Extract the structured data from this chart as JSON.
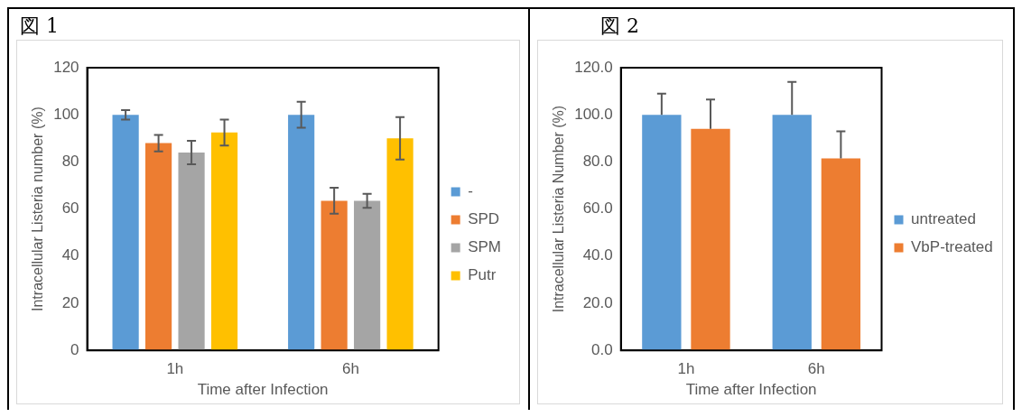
{
  "chart_data": [
    {
      "type": "bar",
      "title": "図 1",
      "xlabel": "Time after Infection",
      "ylabel": "Intracellular Listeria number (%)",
      "categories": [
        "1h",
        "6h"
      ],
      "ylim": [
        0,
        120
      ],
      "yticks": [
        0,
        20,
        40,
        60,
        80,
        100,
        120
      ],
      "legend": "right",
      "series": [
        {
          "name": "-",
          "color": "#5b9bd5",
          "values": [
            100,
            100
          ],
          "errors": [
            2,
            5.5
          ]
        },
        {
          "name": "SPD",
          "color": "#ed7d31",
          "values": [
            88,
            63.5
          ],
          "errors": [
            3.5,
            5.5
          ]
        },
        {
          "name": "SPM",
          "color": "#a5a5a5",
          "values": [
            84,
            63.5
          ],
          "errors": [
            5,
            3
          ]
        },
        {
          "name": "Putr",
          "color": "#ffc000",
          "values": [
            92.5,
            90
          ],
          "errors": [
            5.5,
            9
          ]
        }
      ]
    },
    {
      "type": "bar",
      "title": "図 2",
      "xlabel": "Time after Infection",
      "ylabel": "Intracellular Listeria Number (%)",
      "categories": [
        "1h",
        "6h"
      ],
      "ylim": [
        0,
        120
      ],
      "yticks": [
        {
          "value": 0,
          "label": "0.0"
        },
        {
          "value": 20,
          "label": "20.0"
        },
        {
          "value": 40,
          "label": "40.0"
        },
        {
          "value": 60,
          "label": "60.0"
        },
        {
          "value": 80,
          "label": "80.0"
        },
        {
          "value": 100,
          "label": "100.0"
        },
        {
          "value": 120,
          "label": "120.0"
        }
      ],
      "legend": "right",
      "series": [
        {
          "name": "untreated",
          "color": "#5b9bd5",
          "values": [
            100,
            100
          ],
          "errors": [
            [
              100,
              109
            ],
            [
              100,
              114
            ]
          ]
        },
        {
          "name": "VbP-treated",
          "color": "#ed7d31",
          "values": [
            94,
            81.5
          ],
          "errors": [
            [
              94,
              106.5
            ],
            [
              81.5,
              93
            ]
          ]
        }
      ]
    }
  ]
}
